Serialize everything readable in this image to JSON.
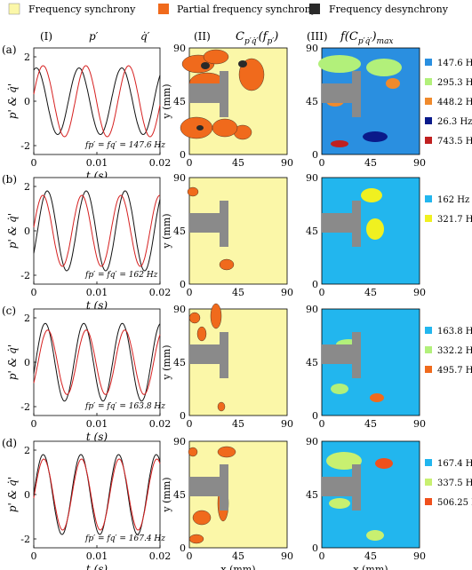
{
  "legend": [
    {
      "label": "Frequency synchrony",
      "color": "#fbf7a8"
    },
    {
      "label": "Partial frequency synchrony",
      "color": "#f06a1c"
    },
    {
      "label": "Frequency desynchrony",
      "color": "#2a2a2a"
    }
  ],
  "column_headers": {
    "col1": "(I)",
    "col2": "(II)",
    "col2_formula": "C_{p'q'}(f_{p'})",
    "col3": "(III)",
    "col3_formula": "f(C_{p'q'})_max"
  },
  "line_legend": {
    "p": "p′",
    "q": "q̇′"
  },
  "rows": [
    {
      "label": "(a)",
      "freq_text": "f_{p'} = f_{q'} = 147.6 Hz",
      "freqs": [
        "147.6 Hz",
        "295.3 Hz",
        "448.2 Hz",
        "26.3 Hz",
        "743.5 Hz"
      ],
      "freq_colors": [
        "#2a8fe0",
        "#b2f07a",
        "#f08a2c",
        "#0a1a8a",
        "#c02020"
      ]
    },
    {
      "label": "(b)",
      "freq_text": "f_{p'} = f_{q'} = 162 Hz",
      "freqs": [
        "162 Hz",
        "321.7 Hz"
      ],
      "freq_colors": [
        "#22b6ee",
        "#f0f020"
      ]
    },
    {
      "label": "(c)",
      "freq_text": "f_{p'} = f_{q'} = 163.8 Hz",
      "freqs": [
        "163.8 Hz",
        "332.2 Hz",
        "495.7 Hz"
      ],
      "freq_colors": [
        "#22b6ee",
        "#b2f07a",
        "#f06a1c"
      ]
    },
    {
      "label": "(d)",
      "freq_text": "f_{p'} = f_{q'} = 167.4 Hz",
      "freqs": [
        "167.4 Hz",
        "337.5 Hz",
        "506.25 Hz"
      ],
      "freq_colors": [
        "#22b6ee",
        "#c8f070",
        "#f0501c"
      ]
    }
  ],
  "chart_data": [
    {
      "type": "line",
      "panel": "a-I",
      "xlabel": "t (s)",
      "ylabel": "p' & q̇'",
      "xlim": [
        0,
        0.02
      ],
      "ylim": [
        -2.4,
        2.4
      ],
      "xticks": [
        "0",
        "0.01",
        "0.02"
      ],
      "yticks": [
        "-2",
        "0",
        "2"
      ],
      "series": [
        {
          "name": "p′",
          "freq_hz": 147.6,
          "amplitude": 1.5,
          "phase": 1.2
        },
        {
          "name": "q̇′",
          "freq_hz": 147.6,
          "amplitude": 1.6,
          "phase": 0.2
        }
      ]
    },
    {
      "type": "line",
      "panel": "b-I",
      "xlabel": "t (s)",
      "ylabel": "p' & q̇'",
      "xlim": [
        0,
        0.02
      ],
      "ylim": [
        -2.4,
        2.4
      ],
      "xticks": [
        "0",
        "0.01",
        "0.02"
      ],
      "yticks": [
        "-2",
        "0",
        "2"
      ],
      "series": [
        {
          "name": "p′",
          "freq_hz": 162,
          "amplitude": 1.8,
          "phase": -0.6
        },
        {
          "name": "q̇′",
          "freq_hz": 162,
          "amplitude": 1.6,
          "phase": 0.1
        }
      ]
    },
    {
      "type": "line",
      "panel": "c-I",
      "xlabel": "t (s)",
      "ylabel": "p' & q̇'",
      "xlim": [
        0,
        0.02
      ],
      "ylim": [
        -2.4,
        2.4
      ],
      "xticks": [
        "0",
        "0.01",
        "0.02"
      ],
      "yticks": [
        "-2",
        "0",
        "2"
      ],
      "series": [
        {
          "name": "p′",
          "freq_hz": 163.8,
          "amplitude": 1.75,
          "phase": -0.3
        },
        {
          "name": "q̇′",
          "freq_hz": 163.8,
          "amplitude": 1.45,
          "phase": -0.7
        }
      ]
    },
    {
      "type": "line",
      "panel": "d-I",
      "xlabel": "t (s)",
      "ylabel": "p' & q̇'",
      "xlim": [
        0,
        0.02
      ],
      "ylim": [
        -2.4,
        2.4
      ],
      "xticks": [
        "0",
        "0.01",
        "0.02"
      ],
      "yticks": [
        "-2",
        "0",
        "2"
      ],
      "series": [
        {
          "name": "p′",
          "freq_hz": 167.4,
          "amplitude": 1.8,
          "phase": 0.0
        },
        {
          "name": "q̇′",
          "freq_hz": 167.4,
          "amplitude": 1.6,
          "phase": -0.1
        }
      ]
    },
    {
      "type": "heatmap",
      "panel": "maps-II-III",
      "xlabel": "x (mm)",
      "ylabel": "y (mm)",
      "xlim": [
        0,
        90
      ],
      "ylim": [
        0,
        90
      ],
      "xticks": [
        "0",
        "45",
        "90"
      ],
      "yticks": [
        "0",
        "45",
        "90"
      ]
    }
  ]
}
